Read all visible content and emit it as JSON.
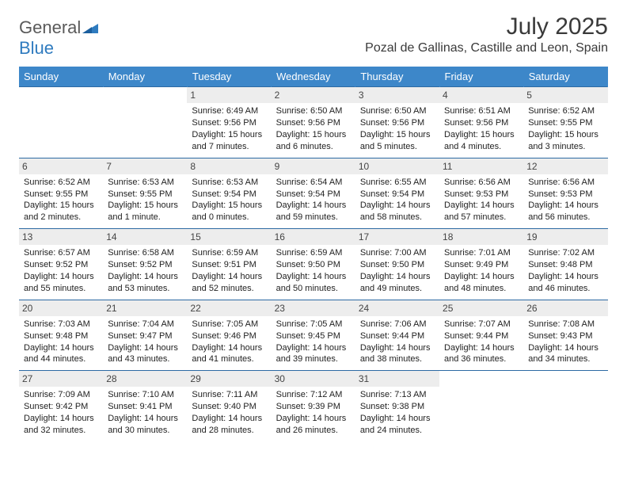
{
  "logo": {
    "word1": "General",
    "word2": "Blue"
  },
  "title": "July 2025",
  "location": "Pozal de Gallinas, Castille and Leon, Spain",
  "colors": {
    "header_bg": "#3d87c9",
    "header_text": "#ffffff",
    "rule": "#2d6aa3",
    "daynum_bg": "#ededed",
    "logo_gray": "#5a5a5a",
    "logo_blue": "#2f7bbf"
  },
  "day_labels": [
    "Sunday",
    "Monday",
    "Tuesday",
    "Wednesday",
    "Thursday",
    "Friday",
    "Saturday"
  ],
  "weeks": [
    [
      {
        "n": "",
        "sr": "",
        "ss": "",
        "dl": ""
      },
      {
        "n": "",
        "sr": "",
        "ss": "",
        "dl": ""
      },
      {
        "n": "1",
        "sr": "Sunrise: 6:49 AM",
        "ss": "Sunset: 9:56 PM",
        "dl": "Daylight: 15 hours and 7 minutes."
      },
      {
        "n": "2",
        "sr": "Sunrise: 6:50 AM",
        "ss": "Sunset: 9:56 PM",
        "dl": "Daylight: 15 hours and 6 minutes."
      },
      {
        "n": "3",
        "sr": "Sunrise: 6:50 AM",
        "ss": "Sunset: 9:56 PM",
        "dl": "Daylight: 15 hours and 5 minutes."
      },
      {
        "n": "4",
        "sr": "Sunrise: 6:51 AM",
        "ss": "Sunset: 9:56 PM",
        "dl": "Daylight: 15 hours and 4 minutes."
      },
      {
        "n": "5",
        "sr": "Sunrise: 6:52 AM",
        "ss": "Sunset: 9:55 PM",
        "dl": "Daylight: 15 hours and 3 minutes."
      }
    ],
    [
      {
        "n": "6",
        "sr": "Sunrise: 6:52 AM",
        "ss": "Sunset: 9:55 PM",
        "dl": "Daylight: 15 hours and 2 minutes."
      },
      {
        "n": "7",
        "sr": "Sunrise: 6:53 AM",
        "ss": "Sunset: 9:55 PM",
        "dl": "Daylight: 15 hours and 1 minute."
      },
      {
        "n": "8",
        "sr": "Sunrise: 6:53 AM",
        "ss": "Sunset: 9:54 PM",
        "dl": "Daylight: 15 hours and 0 minutes."
      },
      {
        "n": "9",
        "sr": "Sunrise: 6:54 AM",
        "ss": "Sunset: 9:54 PM",
        "dl": "Daylight: 14 hours and 59 minutes."
      },
      {
        "n": "10",
        "sr": "Sunrise: 6:55 AM",
        "ss": "Sunset: 9:54 PM",
        "dl": "Daylight: 14 hours and 58 minutes."
      },
      {
        "n": "11",
        "sr": "Sunrise: 6:56 AM",
        "ss": "Sunset: 9:53 PM",
        "dl": "Daylight: 14 hours and 57 minutes."
      },
      {
        "n": "12",
        "sr": "Sunrise: 6:56 AM",
        "ss": "Sunset: 9:53 PM",
        "dl": "Daylight: 14 hours and 56 minutes."
      }
    ],
    [
      {
        "n": "13",
        "sr": "Sunrise: 6:57 AM",
        "ss": "Sunset: 9:52 PM",
        "dl": "Daylight: 14 hours and 55 minutes."
      },
      {
        "n": "14",
        "sr": "Sunrise: 6:58 AM",
        "ss": "Sunset: 9:52 PM",
        "dl": "Daylight: 14 hours and 53 minutes."
      },
      {
        "n": "15",
        "sr": "Sunrise: 6:59 AM",
        "ss": "Sunset: 9:51 PM",
        "dl": "Daylight: 14 hours and 52 minutes."
      },
      {
        "n": "16",
        "sr": "Sunrise: 6:59 AM",
        "ss": "Sunset: 9:50 PM",
        "dl": "Daylight: 14 hours and 50 minutes."
      },
      {
        "n": "17",
        "sr": "Sunrise: 7:00 AM",
        "ss": "Sunset: 9:50 PM",
        "dl": "Daylight: 14 hours and 49 minutes."
      },
      {
        "n": "18",
        "sr": "Sunrise: 7:01 AM",
        "ss": "Sunset: 9:49 PM",
        "dl": "Daylight: 14 hours and 48 minutes."
      },
      {
        "n": "19",
        "sr": "Sunrise: 7:02 AM",
        "ss": "Sunset: 9:48 PM",
        "dl": "Daylight: 14 hours and 46 minutes."
      }
    ],
    [
      {
        "n": "20",
        "sr": "Sunrise: 7:03 AM",
        "ss": "Sunset: 9:48 PM",
        "dl": "Daylight: 14 hours and 44 minutes."
      },
      {
        "n": "21",
        "sr": "Sunrise: 7:04 AM",
        "ss": "Sunset: 9:47 PM",
        "dl": "Daylight: 14 hours and 43 minutes."
      },
      {
        "n": "22",
        "sr": "Sunrise: 7:05 AM",
        "ss": "Sunset: 9:46 PM",
        "dl": "Daylight: 14 hours and 41 minutes."
      },
      {
        "n": "23",
        "sr": "Sunrise: 7:05 AM",
        "ss": "Sunset: 9:45 PM",
        "dl": "Daylight: 14 hours and 39 minutes."
      },
      {
        "n": "24",
        "sr": "Sunrise: 7:06 AM",
        "ss": "Sunset: 9:44 PM",
        "dl": "Daylight: 14 hours and 38 minutes."
      },
      {
        "n": "25",
        "sr": "Sunrise: 7:07 AM",
        "ss": "Sunset: 9:44 PM",
        "dl": "Daylight: 14 hours and 36 minutes."
      },
      {
        "n": "26",
        "sr": "Sunrise: 7:08 AM",
        "ss": "Sunset: 9:43 PM",
        "dl": "Daylight: 14 hours and 34 minutes."
      }
    ],
    [
      {
        "n": "27",
        "sr": "Sunrise: 7:09 AM",
        "ss": "Sunset: 9:42 PM",
        "dl": "Daylight: 14 hours and 32 minutes."
      },
      {
        "n": "28",
        "sr": "Sunrise: 7:10 AM",
        "ss": "Sunset: 9:41 PM",
        "dl": "Daylight: 14 hours and 30 minutes."
      },
      {
        "n": "29",
        "sr": "Sunrise: 7:11 AM",
        "ss": "Sunset: 9:40 PM",
        "dl": "Daylight: 14 hours and 28 minutes."
      },
      {
        "n": "30",
        "sr": "Sunrise: 7:12 AM",
        "ss": "Sunset: 9:39 PM",
        "dl": "Daylight: 14 hours and 26 minutes."
      },
      {
        "n": "31",
        "sr": "Sunrise: 7:13 AM",
        "ss": "Sunset: 9:38 PM",
        "dl": "Daylight: 14 hours and 24 minutes."
      },
      {
        "n": "",
        "sr": "",
        "ss": "",
        "dl": ""
      },
      {
        "n": "",
        "sr": "",
        "ss": "",
        "dl": ""
      }
    ]
  ]
}
